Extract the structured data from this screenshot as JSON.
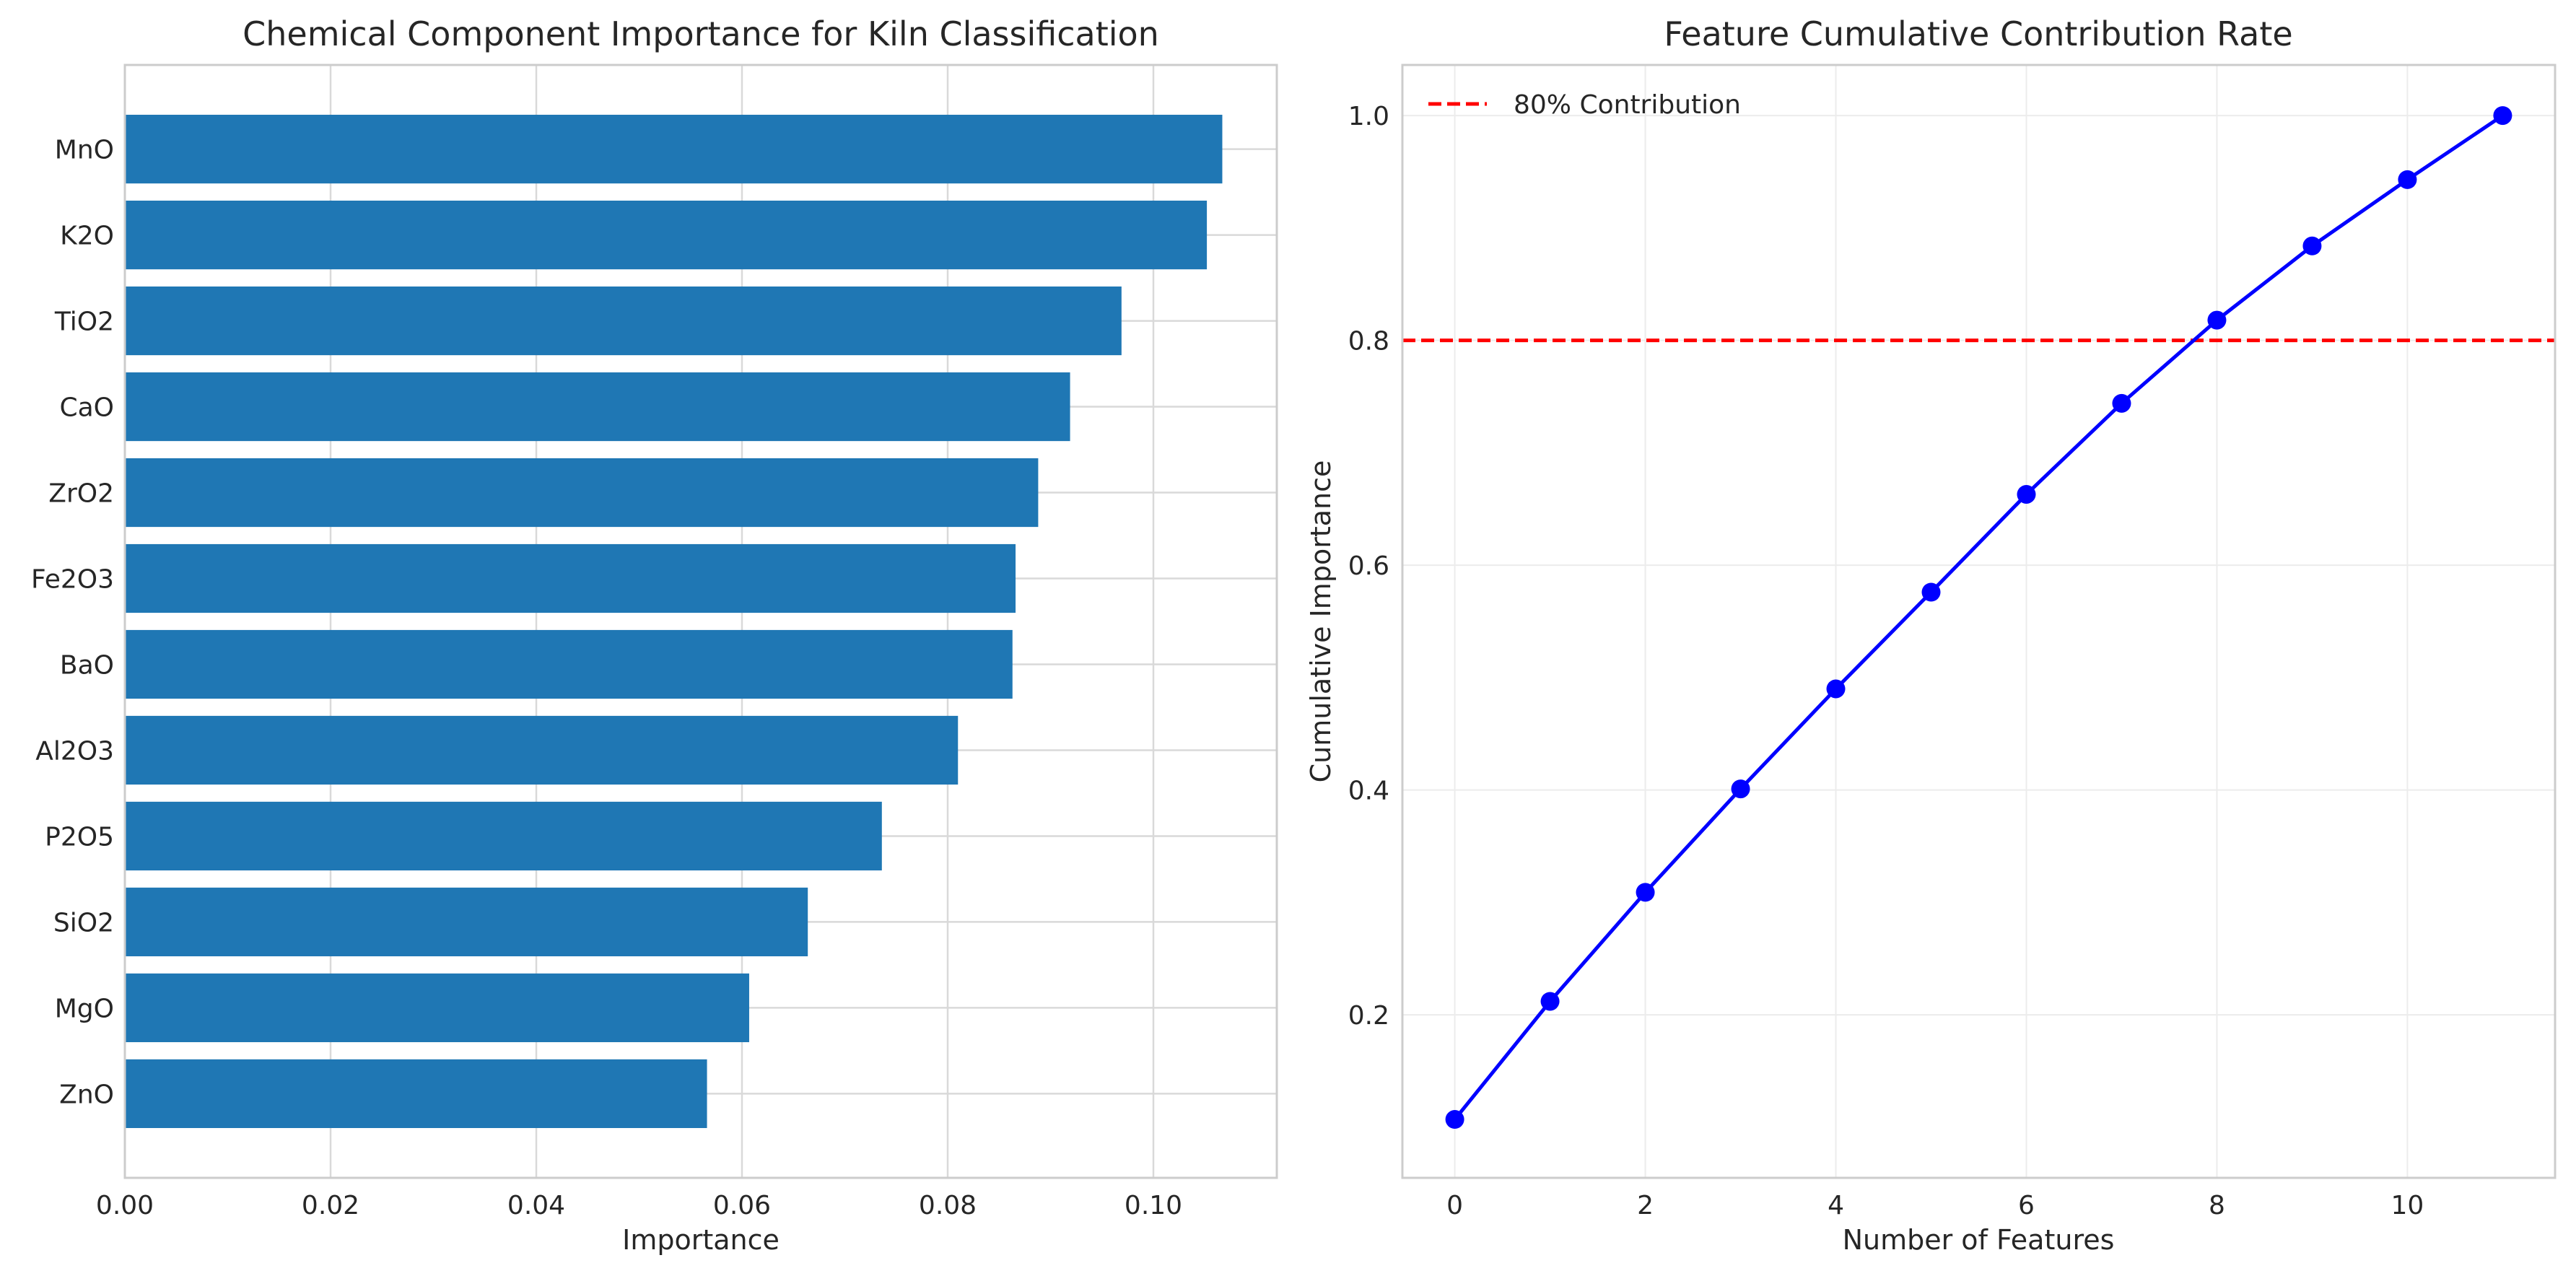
{
  "chart_data": [
    {
      "type": "bar",
      "orientation": "horizontal",
      "title": "Chemical Component Importance for Kiln Classification",
      "xlabel": "Importance",
      "ylabel": "",
      "categories": [
        "MnO",
        "K2O",
        "TiO2",
        "CaO",
        "ZrO2",
        "Fe2O3",
        "BaO",
        "Al2O3",
        "P2O5",
        "SiO2",
        "MgO",
        "ZnO"
      ],
      "values": [
        0.1067,
        0.1052,
        0.0969,
        0.0919,
        0.0888,
        0.0866,
        0.0863,
        0.081,
        0.0736,
        0.0664,
        0.0607,
        0.0566
      ],
      "xlim": [
        0,
        0.112
      ],
      "xticks": [
        0.0,
        0.02,
        0.04,
        0.06,
        0.08,
        0.1
      ],
      "xtick_labels": [
        "0.00",
        "0.02",
        "0.04",
        "0.06",
        "0.08",
        "0.10"
      ],
      "bar_color": "#1f77b4",
      "grid": true
    },
    {
      "type": "line",
      "title": "Feature Cumulative Contribution Rate",
      "xlabel": "Number of Features",
      "ylabel": "Cumulative Importance",
      "x": [
        0,
        1,
        2,
        3,
        4,
        5,
        6,
        7,
        8,
        9,
        10,
        11
      ],
      "y": [
        0.107,
        0.212,
        0.309,
        0.401,
        0.49,
        0.576,
        0.663,
        0.744,
        0.818,
        0.884,
        0.943,
        1.0
      ],
      "xlim": [
        -0.55,
        11.55
      ],
      "ylim": [
        0.055,
        1.045
      ],
      "xticks": [
        0,
        2,
        4,
        6,
        8,
        10
      ],
      "xtick_labels": [
        "0",
        "2",
        "4",
        "6",
        "8",
        "10"
      ],
      "yticks": [
        0.2,
        0.4,
        0.6,
        0.8,
        1.0
      ],
      "ytick_labels": [
        "0.2",
        "0.4",
        "0.6",
        "0.8",
        "1.0"
      ],
      "line_color": "#0000ff",
      "threshold": {
        "value": 0.8,
        "label": "80% Contribution",
        "color": "#ff0000",
        "style": "dashed"
      },
      "legend": {
        "placement": "top-left",
        "entries": [
          "80% Contribution"
        ]
      },
      "grid": true
    }
  ]
}
